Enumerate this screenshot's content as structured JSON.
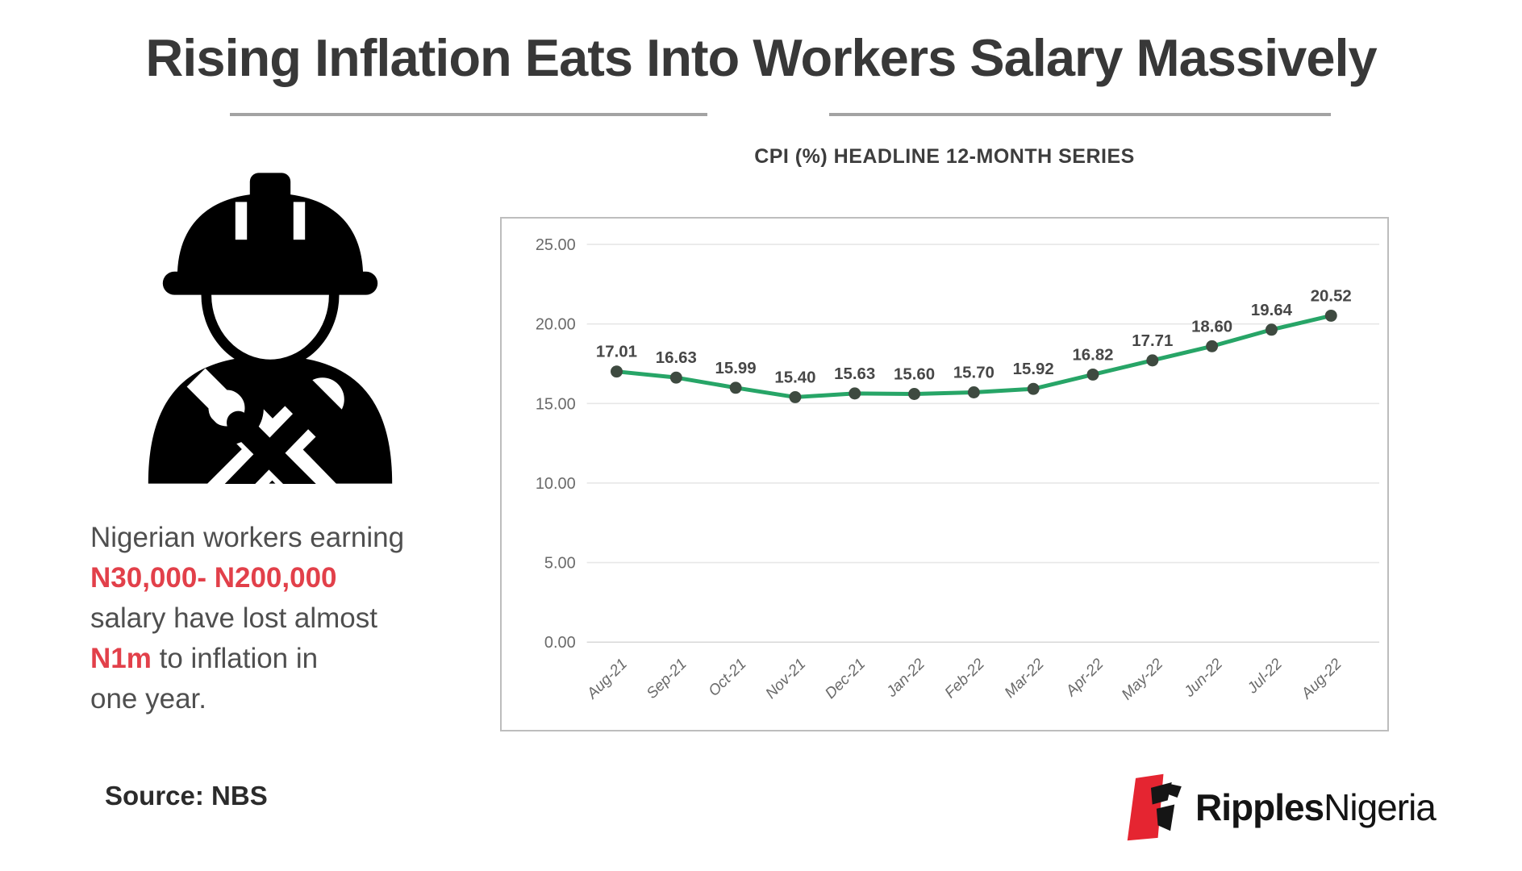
{
  "page": {
    "title": "Rising Inflation Eats Into Workers Salary Massively"
  },
  "infographic": {
    "paragraph_lines": [
      [
        {
          "t": "Nigerian workers earning",
          "s": "n"
        }
      ],
      [
        {
          "t": "N30,000- N200,000",
          "s": "r"
        }
      ],
      [
        {
          "t": "salary have lost almost",
          "s": "n"
        }
      ],
      [
        {
          "t": "N1m",
          "s": "r"
        },
        {
          "t": " to inflation in",
          "s": "n"
        }
      ],
      [
        {
          "t": "one year.",
          "s": "n"
        }
      ]
    ],
    "source": "Source: NBS"
  },
  "chart_data": {
    "type": "line",
    "title": "CPI (%)  HEADLINE 12-MONTH SERIES",
    "categories": [
      "Aug-21",
      "Sep-21",
      "Oct-21",
      "Nov-21",
      "Dec-21",
      "Jan-22",
      "Feb-22",
      "Mar-22",
      "Apr-22",
      "May-22",
      "Jun-22",
      "Jul-22",
      "Aug-22"
    ],
    "values": [
      17.01,
      16.63,
      15.99,
      15.4,
      15.63,
      15.6,
      15.7,
      15.92,
      16.82,
      17.71,
      18.6,
      19.64,
      20.52
    ],
    "data_labels": [
      "17.01",
      "16.63",
      "15.99",
      "15.40",
      "15.63",
      "15.60",
      "15.70",
      "15.92",
      "16.82",
      "17.71",
      "18.60",
      "19.64",
      "20.52"
    ],
    "xlabel": "",
    "ylabel": "",
    "ylim": [
      0,
      25
    ],
    "ytick_step": 5,
    "ytick_labels": [
      "0.00",
      "5.00",
      "10.00",
      "15.00",
      "20.00",
      "25.00"
    ],
    "grid": true,
    "legend": "none",
    "line_color": "#27A567",
    "marker_color": "#3E4A40"
  },
  "branding": {
    "logo_bold": "Ripples",
    "logo_regular": "Nigeria"
  },
  "colors": {
    "accent_red": "#E2404A",
    "logo_red": "#E52531",
    "line_green": "#27A567"
  }
}
